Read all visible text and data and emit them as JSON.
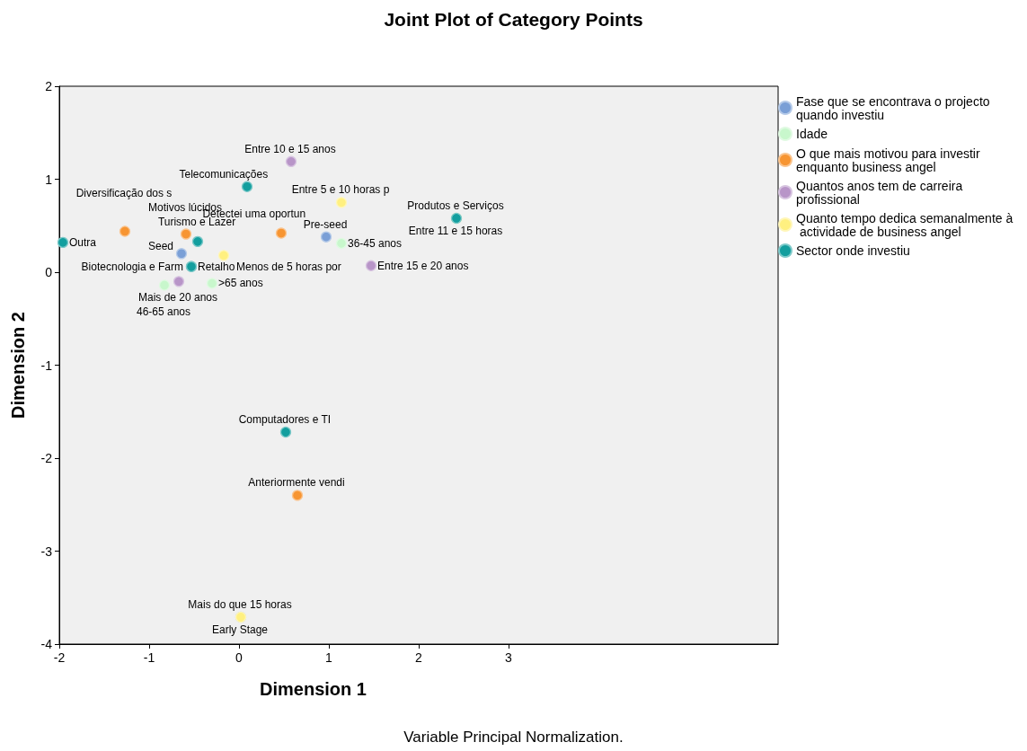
{
  "chart_data": {
    "type": "scatter",
    "title": "Joint Plot of Category Points",
    "xlabel": "Dimension 1",
    "ylabel": "Dimension 2",
    "annotations": [
      "Variable Principal Normalization."
    ],
    "xlim": [
      -2,
      6
    ],
    "xticks": [
      -2,
      -1,
      0,
      1,
      2,
      3
    ],
    "ylim": [
      -4,
      2
    ],
    "yticks": [
      -4,
      -3,
      -2,
      -1,
      0,
      1,
      2
    ],
    "grid": false,
    "legend": "right",
    "marker": "circle",
    "series": [
      {
        "name": "Fase que se encontrava o projecto quando investiu",
        "color": "#7a9fd6",
        "x": [
          -0.64,
          0.97,
          0.02
        ],
        "values": [
          0.2,
          0.38,
          -3.71
        ],
        "value_labels": [
          "Seed",
          "Pre-seed",
          "Early Stage"
        ]
      },
      {
        "name": "Idade",
        "color": "#c8f7cc",
        "x": [
          1.14,
          -0.83,
          -0.3
        ],
        "values": [
          0.31,
          -0.14,
          -0.12
        ],
        "value_labels": [
          "36-45 anos",
          "46-65 anos",
          ">65 anos"
        ]
      },
      {
        "name": "O que mais motivou para investir enquanto business angel",
        "color": "#f79532",
        "x": [
          -1.27,
          -0.59,
          0.47,
          0.65
        ],
        "values": [
          0.44,
          0.41,
          0.42,
          -2.4
        ],
        "value_labels": [
          "Diversificação dos s",
          "Motivos lúcidos",
          "Detectei uma oportun",
          "Anteriormente vendi"
        ]
      },
      {
        "name": "Quantos anos tem de carreira profissional",
        "color": "#b895c8",
        "x": [
          0.58,
          1.47,
          -0.67
        ],
        "values": [
          1.19,
          0.07,
          -0.1
        ],
        "value_labels": [
          "Entre 10 e 15 anos",
          "Entre 15 e 20 anos",
          "Mais de 20 anos"
        ]
      },
      {
        "name": "Quanto tempo dedica semanalmente à actividade de business angel",
        "color": "#fff080",
        "x": [
          -0.17,
          1.14,
          2.42,
          0.02
        ],
        "values": [
          0.18,
          0.75,
          0.58,
          -3.71
        ],
        "value_labels": [
          "Menos de 5 horas por",
          "Entre 5 e 10 horas p",
          "Entre 11 e 15 horas",
          "Mais do que 15 horas"
        ]
      },
      {
        "name": "Sector onde investiu",
        "color": "#139e9e",
        "x": [
          -1.96,
          0.09,
          -0.46,
          -0.53,
          -0.53,
          2.42,
          0.52
        ],
        "values": [
          0.32,
          0.92,
          0.33,
          0.06,
          0.06,
          0.58,
          -1.72
        ],
        "value_labels": [
          "Outra",
          "Telecomunicações",
          "Turismo e Lazer",
          "Biotecnologia e Farm",
          "Retalho",
          "Produtos e Serviços",
          "Computadores e TI"
        ]
      }
    ]
  }
}
